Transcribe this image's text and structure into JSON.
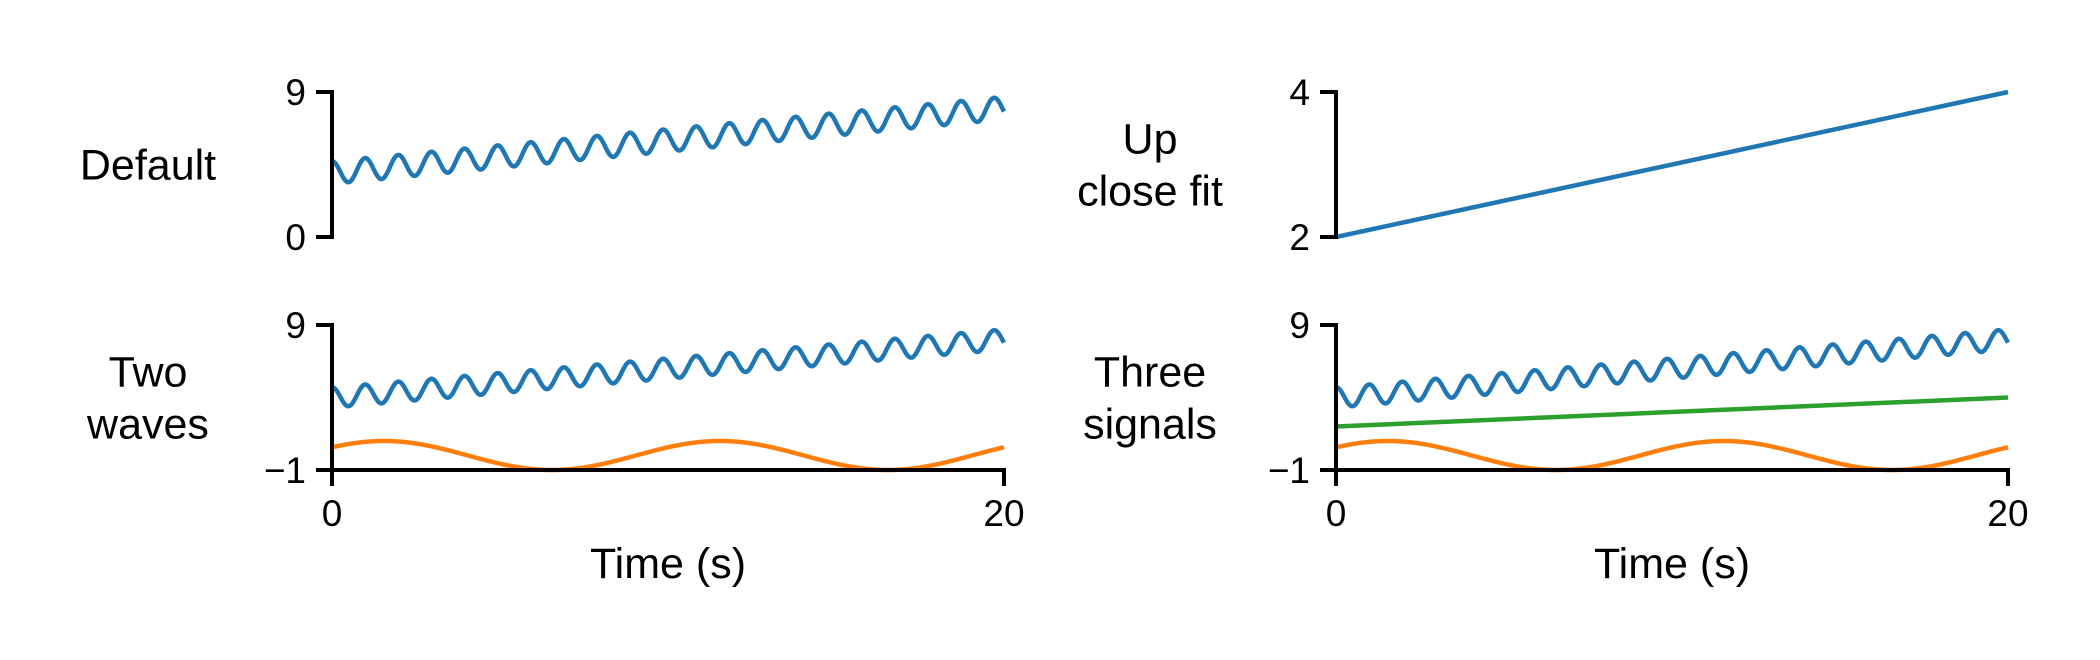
{
  "colors": {
    "blue": "#1f77b4",
    "orange": "#ff7f0e",
    "green": "#2ca02c",
    "axis": "#000000",
    "background": "#ffffff"
  },
  "chart_data": [
    {
      "type": "line",
      "row_label": [
        "Default"
      ],
      "xlim": [
        0,
        20
      ],
      "ylim": [
        0,
        9
      ],
      "yticks": [
        {
          "value": 0,
          "label": "0"
        },
        {
          "value": 9,
          "label": "9"
        }
      ],
      "xticks": [],
      "xlabel": "",
      "grid": false,
      "series": [
        {
          "color": "blue",
          "kind": "wave",
          "base_start": 4,
          "base_end": 8,
          "amplitude": 0.7,
          "cycles": 20.3
        }
      ]
    },
    {
      "type": "line",
      "row_label": [
        "Up",
        "close fit"
      ],
      "xlim": [
        0,
        20
      ],
      "ylim": [
        2,
        4
      ],
      "yticks": [
        {
          "value": 2,
          "label": "2"
        },
        {
          "value": 4,
          "label": "4"
        }
      ],
      "xticks": [],
      "xlabel": "",
      "grid": false,
      "series": [
        {
          "color": "blue",
          "kind": "line",
          "x": [
            0,
            20
          ],
          "y": [
            2,
            4
          ]
        }
      ]
    },
    {
      "type": "line",
      "row_label": [
        "Two",
        "waves"
      ],
      "xlim": [
        0,
        20
      ],
      "ylim": [
        -1,
        9
      ],
      "yticks": [
        {
          "value": -1,
          "label": "−1"
        },
        {
          "value": 9,
          "label": "9"
        }
      ],
      "xticks": [
        {
          "value": 0,
          "label": "0"
        },
        {
          "value": 20,
          "label": "20"
        }
      ],
      "xlabel": "Time (s)",
      "grid": false,
      "series": [
        {
          "color": "blue",
          "kind": "wave",
          "base_start": 4,
          "base_end": 8,
          "amplitude": 0.7,
          "cycles": 20.3
        },
        {
          "color": "orange",
          "kind": "sine",
          "offset": 0,
          "amplitude": 1,
          "period": 10
        }
      ]
    },
    {
      "type": "line",
      "row_label": [
        "Three",
        "signals"
      ],
      "xlim": [
        0,
        20
      ],
      "ylim": [
        -1,
        9
      ],
      "yticks": [
        {
          "value": -1,
          "label": "−1"
        },
        {
          "value": 9,
          "label": "9"
        }
      ],
      "xticks": [
        {
          "value": 0,
          "label": "0"
        },
        {
          "value": 20,
          "label": "20"
        }
      ],
      "xlabel": "Time (s)",
      "grid": false,
      "series": [
        {
          "color": "blue",
          "kind": "wave",
          "base_start": 4,
          "base_end": 8,
          "amplitude": 0.7,
          "cycles": 20.3
        },
        {
          "color": "green",
          "kind": "line",
          "x": [
            0,
            20
          ],
          "y": [
            2,
            4
          ]
        },
        {
          "color": "orange",
          "kind": "sine",
          "offset": 0,
          "amplitude": 1,
          "period": 10
        }
      ]
    }
  ]
}
